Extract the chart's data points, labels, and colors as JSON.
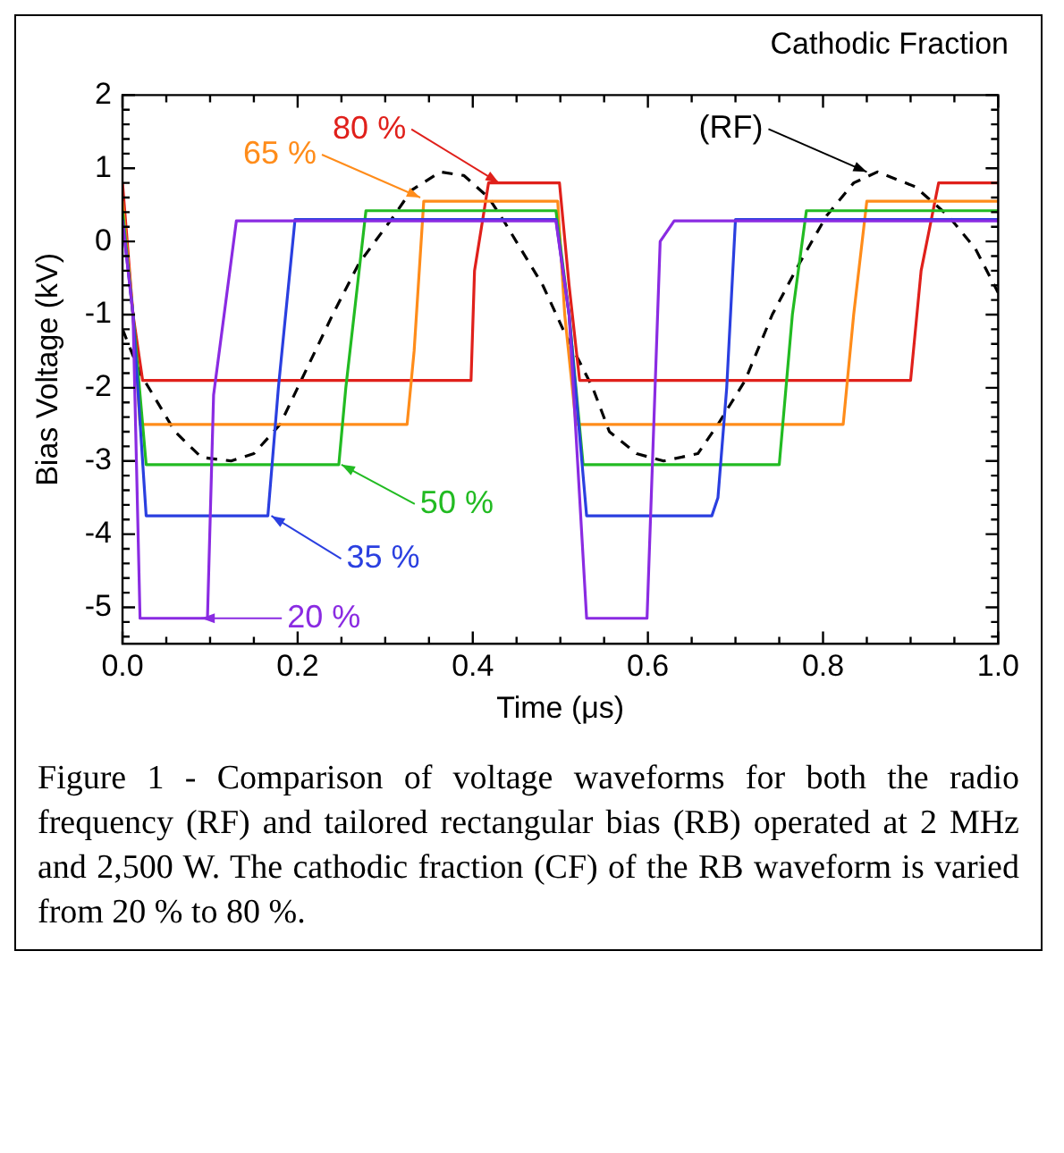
{
  "chart_data": {
    "type": "line",
    "xlabel": "Time (μs)",
    "ylabel": "Bias Voltage (kV)",
    "xlim": [
      0,
      1
    ],
    "xticks": [
      {
        "value": 0,
        "label": "0.0"
      },
      {
        "value": 0.2,
        "label": "0.2"
      },
      {
        "value": 0.4,
        "label": "0.4"
      },
      {
        "value": 0.6,
        "label": "0.6"
      },
      {
        "value": 0.8,
        "label": "0.8"
      },
      {
        "value": 1,
        "label": "1.0"
      }
    ],
    "ylim": [
      -5.5,
      2
    ],
    "yticks": [
      -5,
      -4,
      -3,
      -2,
      -1,
      0,
      1,
      2
    ],
    "grid": false,
    "legend": false,
    "marker": "none",
    "series": [
      {
        "color": "#8a2be2",
        "x": [
          0,
          0.012,
          0.02,
          0.097,
          0.104,
          0.13,
          0.495,
          0.51,
          0.53,
          0.599,
          0.614,
          0.63,
          1.0
        ],
        "values": [
          0.28,
          -1.0,
          -5.15,
          -5.15,
          -2.1,
          0.28,
          0.28,
          -1.0,
          -5.15,
          -5.15,
          0.0,
          0.28,
          0.28
        ]
      },
      {
        "color": "#2a3fe0",
        "x": [
          0,
          0.012,
          0.027,
          0.166,
          0.178,
          0.197,
          0.495,
          0.51,
          0.53,
          0.673,
          0.68,
          0.69,
          0.7,
          1.0
        ],
        "values": [
          0.3,
          -1.0,
          -3.75,
          -3.75,
          -2.0,
          0.3,
          0.3,
          -1.0,
          -3.75,
          -3.75,
          -3.5,
          -2.0,
          0.3,
          0.3
        ]
      },
      {
        "color": "#22bb22",
        "x": [
          0,
          0.012,
          0.027,
          0.247,
          0.255,
          0.278,
          0.495,
          0.51,
          0.526,
          0.75,
          0.765,
          0.781,
          1.0
        ],
        "values": [
          0.42,
          -1.0,
          -3.05,
          -3.05,
          -2.0,
          0.42,
          0.42,
          -1.0,
          -3.05,
          -3.05,
          -1.0,
          0.42,
          0.42
        ]
      },
      {
        "color": "#ff8c1a",
        "x": [
          0,
          0.012,
          0.02,
          0.325,
          0.333,
          0.344,
          0.497,
          0.505,
          0.518,
          0.823,
          0.835,
          0.85,
          1.0
        ],
        "values": [
          0.55,
          -1.0,
          -2.5,
          -2.5,
          -1.5,
          0.55,
          0.55,
          -1.0,
          -2.5,
          -2.5,
          -1.0,
          0.55,
          0.55
        ]
      },
      {
        "color": "#e0201b",
        "x": [
          0,
          0.012,
          0.023,
          0.398,
          0.402,
          0.418,
          0.499,
          0.51,
          0.522,
          0.9,
          0.912,
          0.932,
          1.0
        ],
        "values": [
          0.8,
          -1.0,
          -1.9,
          -1.9,
          -0.4,
          0.8,
          0.8,
          -0.6,
          -1.9,
          -1.9,
          -0.4,
          0.8,
          0.8
        ]
      },
      {
        "color": "#000000",
        "line_style": "dashed",
        "x": [
          0,
          0.02,
          0.06,
          0.09,
          0.124,
          0.15,
          0.18,
          0.2,
          0.24,
          0.27,
          0.31,
          0.33,
          0.363,
          0.39,
          0.418,
          0.437,
          0.48,
          0.503,
          0.537,
          0.556,
          0.587,
          0.618,
          0.657,
          0.68,
          0.711,
          0.742,
          0.773,
          0.804,
          0.835,
          0.862,
          0.905,
          0.943,
          0.974,
          1.0
        ],
        "values": [
          -1.2,
          -1.8,
          -2.6,
          -2.95,
          -3.0,
          -2.9,
          -2.5,
          -2.0,
          -1.0,
          -0.3,
          0.35,
          0.7,
          0.95,
          0.9,
          0.6,
          0.25,
          -0.6,
          -1.2,
          -2.0,
          -2.6,
          -2.9,
          -3.0,
          -2.9,
          -2.5,
          -1.9,
          -1.0,
          -0.3,
          0.35,
          0.8,
          0.95,
          0.75,
          0.35,
          -0.1,
          -0.7
        ]
      }
    ],
    "annotations": [
      "Cathodic Fraction",
      {
        "text": "20 %",
        "x": 0.09,
        "y": -5.15
      },
      {
        "text": "35 %",
        "x": 0.17,
        "y": -3.75
      },
      {
        "text": "50 %",
        "x": 0.25,
        "y": -3.05
      },
      {
        "text": "65 %",
        "x": 0.34,
        "y": 0.6
      },
      {
        "text": "80 %",
        "x": 0.43,
        "y": 0.8
      },
      {
        "text": "(RF)",
        "x": 0.85,
        "y": 0.95
      },
      "Figure 1 - Comparison of voltage waveforms for both the radio frequency (RF) and tailored rectangular bias (RB) operated at 2 MHz and 2,500 W.  The cathodic fraction (CF) of the RB waveform is varied from 20 % to 80 %."
    ]
  }
}
